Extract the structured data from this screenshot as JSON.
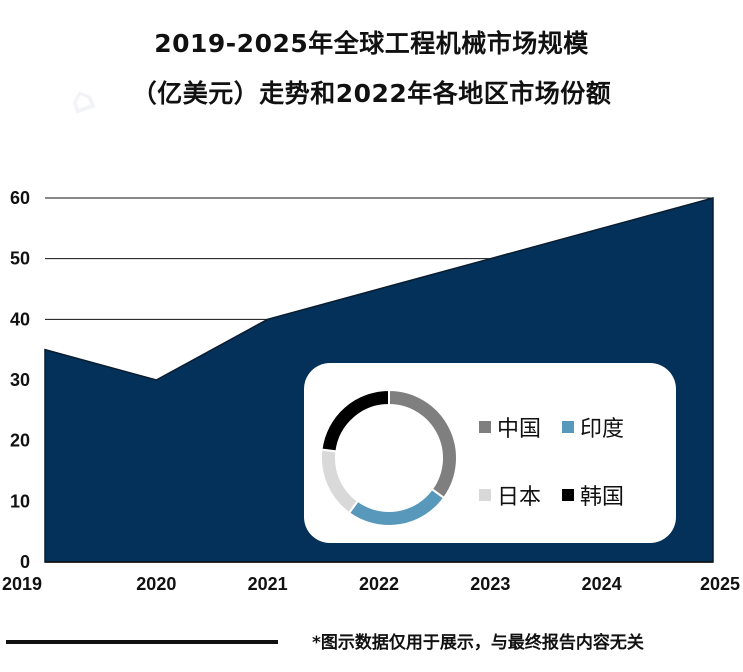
{
  "title_line1": "2019-2025年全球工程机械市场规模",
  "title_line2": "（亿美元）走势和2022年各地区市场份额",
  "chart_data": [
    {
      "type": "area",
      "x": [
        "2019",
        "2020",
        "2021",
        "2022",
        "2023",
        "2024",
        "2025"
      ],
      "values": [
        35,
        30,
        40,
        45,
        50,
        55,
        60
      ],
      "yticks": [
        0,
        10,
        20,
        30,
        40,
        50,
        60
      ],
      "ylim": [
        0,
        60
      ],
      "grid": true,
      "fill_color": "#03315a"
    },
    {
      "type": "pie",
      "style": "donut",
      "labels": [
        "中国",
        "印度",
        "日本",
        "韩国"
      ],
      "values": [
        35,
        25,
        17,
        23
      ],
      "colors": [
        "#7f7f7f",
        "#5898ba",
        "#d9d9d9",
        "#000000"
      ]
    }
  ],
  "legend": {
    "china": "中国",
    "india": "印度",
    "japan": "日本",
    "korea": "韩国"
  },
  "footer_note": "*图示数据仅用于展示，与最终报告内容无关"
}
